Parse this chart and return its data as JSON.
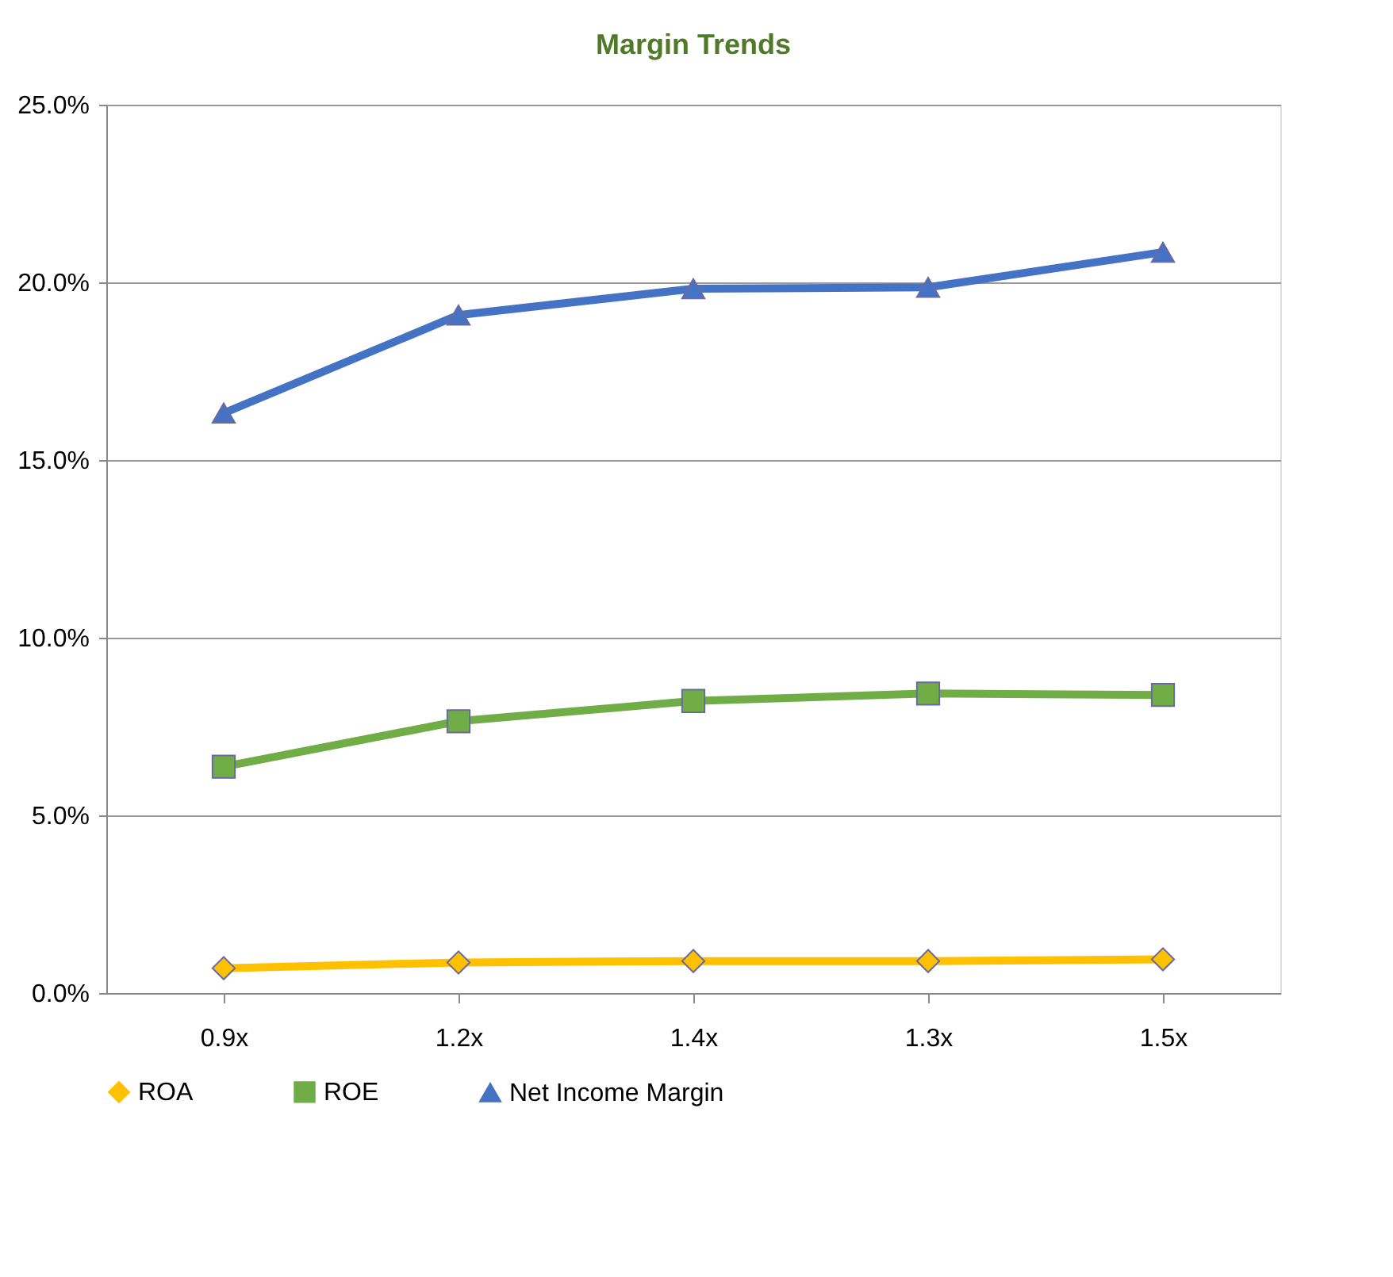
{
  "chart_data": {
    "type": "line",
    "title": "Margin Trends",
    "categories": [
      "0.9x",
      "1.2x",
      "1.4x",
      "1.3x",
      "1.5x"
    ],
    "series": [
      {
        "name": "ROA",
        "color": "#ffc000",
        "marker": "diamond",
        "values": [
          0.7,
          0.86,
          0.9,
          0.9,
          0.95
        ]
      },
      {
        "name": "ROE",
        "color": "#70ad47",
        "marker": "square",
        "values": [
          6.37,
          7.65,
          8.22,
          8.43,
          8.39
        ]
      },
      {
        "name": "Net Income Margin",
        "color": "#4472c4",
        "marker": "triangle",
        "values": [
          16.32,
          19.08,
          19.82,
          19.86,
          20.85
        ]
      }
    ],
    "ylim": [
      0,
      25
    ],
    "yticks": [
      {
        "value": 0,
        "label": "0.0%"
      },
      {
        "value": 5,
        "label": "5.0%"
      },
      {
        "value": 10,
        "label": "10.0%"
      },
      {
        "value": 15,
        "label": "15.0%"
      },
      {
        "value": 20,
        "label": "20.0%"
      },
      {
        "value": 25,
        "label": "25.0%"
      }
    ],
    "grid": "y",
    "legend": "bottom",
    "line_style": "solid"
  }
}
